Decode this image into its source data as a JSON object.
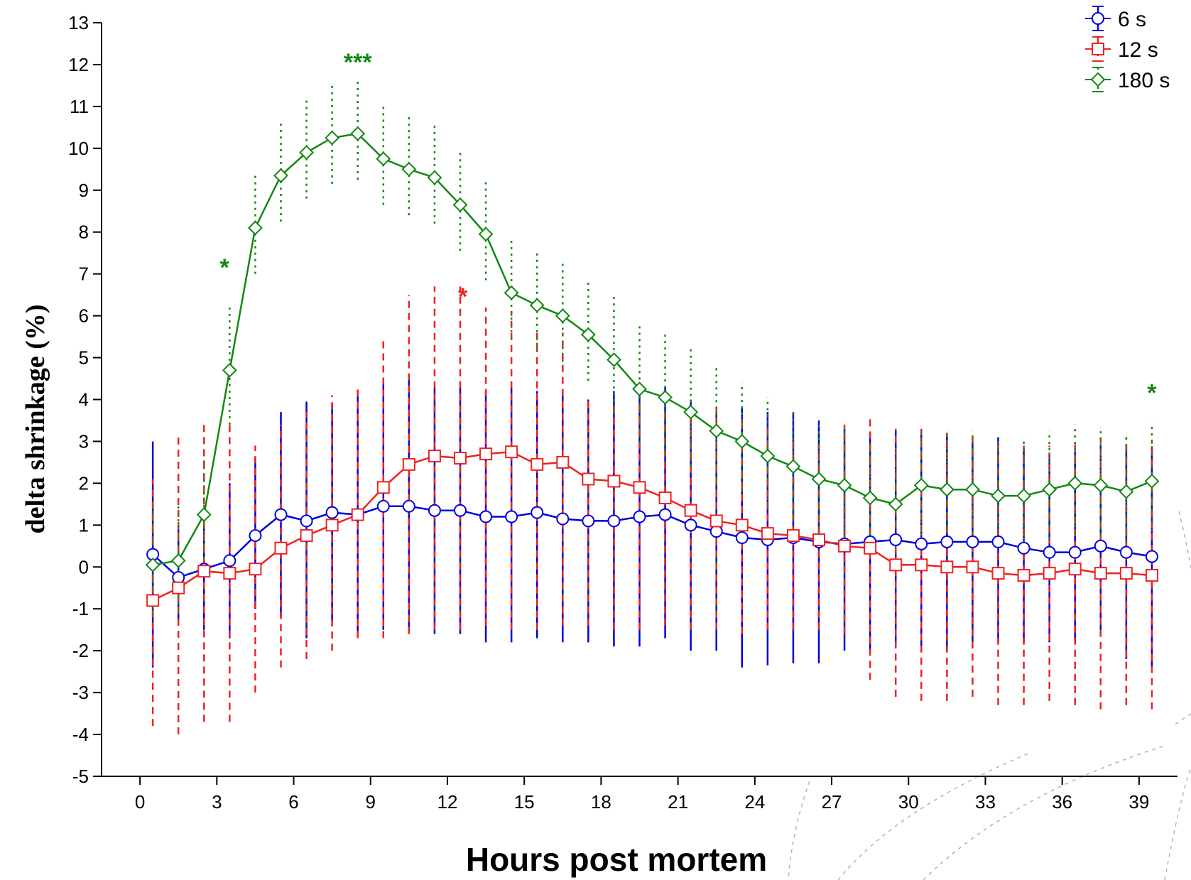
{
  "chart_data": {
    "type": "line",
    "title": "",
    "xlabel": "Hours post mortem",
    "ylabel": "delta shrinkage (%)",
    "xlim": [
      -1.5,
      40.5
    ],
    "ylim": [
      -5,
      13
    ],
    "xticks": [
      0,
      3,
      6,
      9,
      12,
      15,
      18,
      21,
      24,
      27,
      30,
      33,
      36,
      39
    ],
    "yticks": [
      13,
      12,
      11,
      10,
      9,
      8,
      7,
      6,
      5,
      4,
      3,
      2,
      1,
      0,
      -1,
      -2,
      -3,
      -4,
      -5
    ],
    "xtick_labels": [
      "0",
      "3",
      "6",
      "9",
      "12",
      "15",
      "18",
      "21",
      "24",
      "27",
      "30",
      "33",
      "36",
      "39"
    ],
    "ytick_labels": [
      "13",
      "12",
      "11",
      "10",
      "9",
      "8",
      "7",
      "6",
      "5",
      "4",
      "3",
      "2",
      "1",
      "0",
      "-1",
      "-2",
      "-3",
      "-4",
      "-5"
    ],
    "x": [
      0.5,
      1.5,
      2.5,
      3.5,
      4.5,
      5.5,
      6.5,
      7.5,
      8.5,
      9.5,
      10.5,
      11.5,
      12.5,
      13.5,
      14.5,
      15.5,
      16.5,
      17.5,
      18.5,
      19.5,
      20.5,
      21.5,
      22.5,
      23.5,
      24.5,
      25.5,
      26.5,
      27.5,
      28.5,
      29.5,
      30.5,
      31.5,
      32.5,
      33.5,
      34.5,
      35.5,
      36.5,
      37.5,
      38.5,
      39.5
    ],
    "legend_position": "top-right",
    "grid": false,
    "series": [
      {
        "name": "6 s",
        "color": "#0000dd",
        "marker": "circle",
        "errorbar_style": "solid",
        "values": [
          0.3,
          -0.25,
          -0.05,
          0.15,
          0.75,
          1.25,
          1.1,
          1.3,
          1.25,
          1.45,
          1.45,
          1.35,
          1.35,
          1.2,
          1.2,
          1.3,
          1.15,
          1.1,
          1.1,
          1.2,
          1.25,
          1.0,
          0.85,
          0.7,
          0.65,
          0.7,
          0.6,
          0.55,
          0.6,
          0.65,
          0.55,
          0.6,
          0.6,
          0.6,
          0.45,
          0.35,
          0.35,
          0.5,
          0.35,
          0.25
        ],
        "err_low": [
          -2.4,
          -1.3,
          -1.5,
          -1.7,
          -1.0,
          -1.2,
          -1.7,
          -1.3,
          -1.6,
          -1.5,
          -1.6,
          -1.6,
          -1.6,
          -1.8,
          -1.8,
          -1.7,
          -1.8,
          -1.8,
          -1.9,
          -1.9,
          -1.7,
          -2.0,
          -2.0,
          -2.4,
          -2.35,
          -2.3,
          -2.3,
          -2.0,
          -2.0,
          -1.9,
          -1.9,
          -2.0,
          -1.8,
          -1.8,
          -1.8,
          -1.8,
          -1.8,
          -1.6,
          -2.2,
          -2.4
        ],
        "err_high": [
          3.0,
          0.9,
          1.2,
          2.0,
          2.6,
          3.7,
          3.95,
          3.9,
          4.2,
          4.4,
          4.5,
          4.3,
          4.3,
          4.2,
          4.3,
          4.2,
          4.1,
          4.0,
          4.2,
          4.2,
          4.3,
          4.0,
          3.7,
          3.8,
          3.7,
          3.7,
          3.5,
          3.3,
          3.2,
          3.25,
          3.2,
          3.2,
          3.0,
          3.1,
          2.8,
          2.7,
          2.75,
          2.9,
          2.9,
          2.85
        ]
      },
      {
        "name": "12 s",
        "color": "#ee2222",
        "marker": "square",
        "errorbar_style": "dashed",
        "values": [
          -0.8,
          -0.5,
          -0.1,
          -0.15,
          -0.05,
          0.45,
          0.75,
          1.0,
          1.25,
          1.9,
          2.45,
          2.65,
          2.6,
          2.7,
          2.75,
          2.45,
          2.5,
          2.1,
          2.05,
          1.9,
          1.65,
          1.35,
          1.1,
          1.0,
          0.8,
          0.75,
          0.65,
          0.5,
          0.45,
          0.05,
          0.05,
          0.0,
          0.0,
          -0.15,
          -0.2,
          -0.15,
          -0.05,
          -0.15,
          -0.15,
          -0.2
        ],
        "err_low": [
          -3.8,
          -4.0,
          -3.7,
          -3.7,
          -3.0,
          -2.4,
          -2.2,
          -2.0,
          -1.7,
          -1.7,
          -1.6,
          -1.5,
          -1.5,
          -1.4,
          -1.5,
          -1.5,
          -1.4,
          -1.4,
          -1.5,
          -1.5,
          -1.4,
          -1.5,
          -1.5,
          -1.6,
          -1.5,
          -1.5,
          -1.5,
          -1.6,
          -2.7,
          -3.1,
          -3.2,
          -3.2,
          -3.1,
          -3.3,
          -3.3,
          -3.2,
          -3.3,
          -3.4,
          -3.3,
          -3.4
        ],
        "err_high": [
          2.1,
          3.1,
          3.5,
          3.4,
          2.9,
          3.4,
          3.7,
          4.1,
          4.3,
          5.5,
          6.5,
          6.7,
          6.7,
          6.2,
          6.1,
          5.7,
          5.6,
          4.0,
          4.0,
          3.9,
          3.7,
          4.0,
          3.8,
          3.6,
          3.3,
          3.1,
          2.9,
          3.4,
          3.6,
          3.3,
          3.3,
          3.2,
          3.1,
          3.0,
          2.9,
          2.9,
          3.0,
          3.1,
          3.1,
          3.0
        ]
      },
      {
        "name": "180 s",
        "color": "#118811",
        "marker": "diamond",
        "errorbar_style": "dotted",
        "values": [
          0.05,
          0.15,
          1.25,
          4.7,
          8.1,
          9.35,
          9.9,
          10.25,
          10.35,
          9.75,
          9.5,
          9.3,
          8.65,
          7.95,
          6.55,
          6.25,
          6.0,
          5.55,
          4.95,
          4.25,
          4.05,
          3.7,
          3.25,
          3.0,
          2.65,
          2.4,
          2.1,
          1.95,
          1.65,
          1.5,
          1.95,
          1.85,
          1.85,
          1.7,
          1.7,
          1.85,
          2.0,
          1.95,
          1.8,
          2.05
        ]
      }
    ],
    "annotations": [
      {
        "text": "*",
        "x": 3.3,
        "y": 7.2,
        "color": "#118811"
      },
      {
        "text": "***",
        "x": 8.5,
        "y": 12.1,
        "color": "#118811"
      },
      {
        "text": "*",
        "x": 12.6,
        "y": 6.5,
        "color": "#ee2222"
      },
      {
        "text": "*",
        "x": 39.5,
        "y": 4.2,
        "color": "#118811"
      }
    ]
  }
}
